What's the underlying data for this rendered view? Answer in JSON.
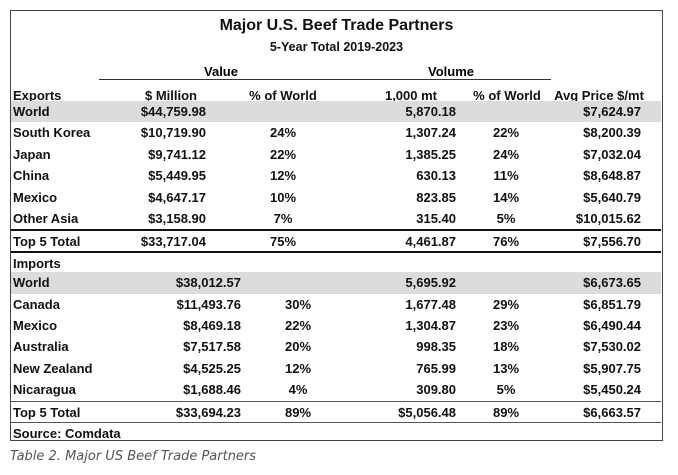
{
  "title": "Major U.S. Beef Trade Partners",
  "subtitle": "5-Year Total 2019-2023",
  "groups": {
    "value": "Value",
    "volume": "Volume"
  },
  "headers": {
    "label": "Exports",
    "million": "$ Million",
    "pct_value": "% of World",
    "volume": "1,000 mt",
    "pct_volume": "% of World",
    "price": "Avg Price $/mt"
  },
  "exports": [
    {
      "name": "World",
      "value": "$44,759.98",
      "pct_value": "",
      "volume": "5,870.18",
      "pct_volume": "",
      "price": "$7,624.97",
      "style": "gray"
    },
    {
      "name": "South Korea",
      "value": "$10,719.90",
      "pct_value": "24%",
      "volume": "1,307.24",
      "pct_volume": "22%",
      "price": "$8,200.39"
    },
    {
      "name": "Japan",
      "value": "$9,741.12",
      "pct_value": "22%",
      "volume": "1,385.25",
      "pct_volume": "24%",
      "price": "$7,032.04"
    },
    {
      "name": "China",
      "value": "$5,449.95",
      "pct_value": "12%",
      "volume": "630.13",
      "pct_volume": "11%",
      "price": "$8,648.87"
    },
    {
      "name": "Mexico",
      "value": "$4,647.17",
      "pct_value": "10%",
      "volume": "823.85",
      "pct_volume": "14%",
      "price": "$5,640.79"
    },
    {
      "name": "Other Asia",
      "value": "$3,158.90",
      "pct_value": "7%",
      "volume": "315.40",
      "pct_volume": "5%",
      "price": "$10,015.62"
    },
    {
      "name": "Top 5 Total",
      "value": "$33,717.04",
      "pct_value": "75%",
      "volume": "4,461.87",
      "pct_volume": "76%",
      "price": "$7,556.70",
      "style": "thick"
    }
  ],
  "imports_label": "Imports",
  "imports": [
    {
      "name": "World",
      "value": "$38,012.57",
      "pct_value": "",
      "volume": "5,695.92",
      "pct_volume": "",
      "price": "$6,673.65",
      "style": "gray"
    },
    {
      "name": "Canada",
      "value": "$11,493.76",
      "pct_value": "30%",
      "volume": "1,677.48",
      "pct_volume": "29%",
      "price": "$6,851.79"
    },
    {
      "name": "Mexico",
      "value": "$8,469.18",
      "pct_value": "22%",
      "volume": "1,304.87",
      "pct_volume": "23%",
      "price": "$6,490.44"
    },
    {
      "name": "Australia",
      "value": "$7,517.58",
      "pct_value": "20%",
      "volume": "998.35",
      "pct_volume": "18%",
      "price": "$7,530.02"
    },
    {
      "name": "New Zealand",
      "value": "$4,525.25",
      "pct_value": "12%",
      "volume": "765.99",
      "pct_volume": "13%",
      "price": "$5,907.75"
    },
    {
      "name": "Nicaragua",
      "value": "$1,688.46",
      "pct_value": "4%",
      "volume": "309.80",
      "pct_volume": "5%",
      "price": "$5,450.24"
    },
    {
      "name": "Top 5 Total",
      "value": "$33,694.23",
      "pct_value": "89%",
      "volume": "$5,056.48",
      "pct_volume": "89%",
      "price": "$6,663.57",
      "style": "thin"
    }
  ],
  "source": "Source: Comdata",
  "caption": "Table 2. Major US Beef Trade Partners",
  "colors": {
    "highlight_row": "#dcdcdc",
    "border": "#444444",
    "caption": "#555555"
  }
}
